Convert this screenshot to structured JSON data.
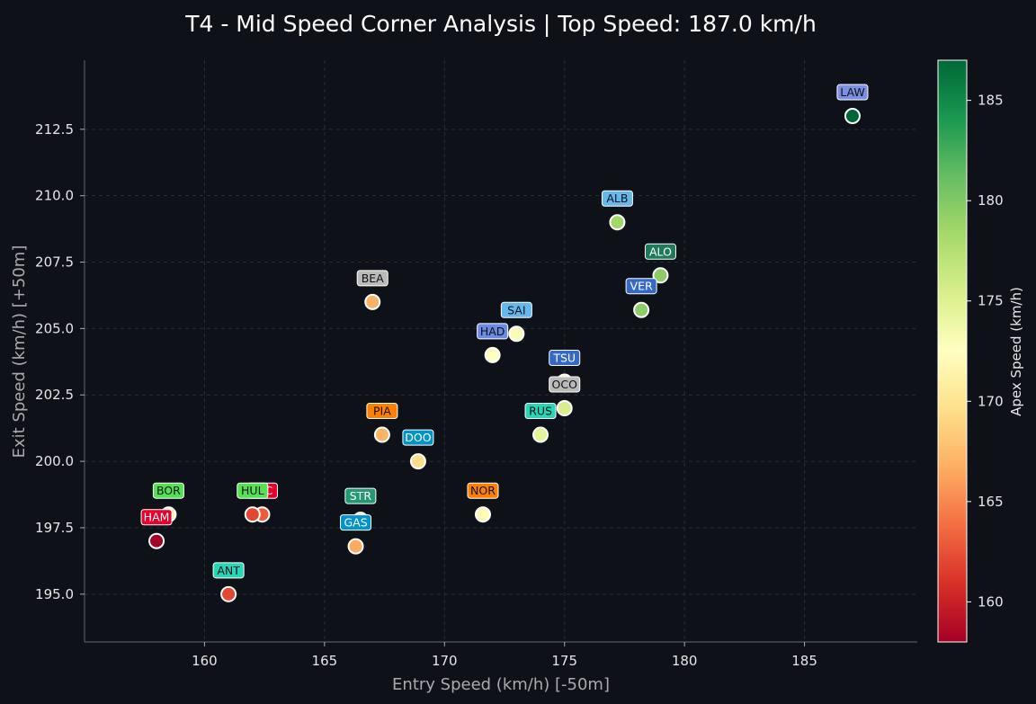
{
  "chart_data": {
    "type": "scatter",
    "title": "T4 - Mid Speed Corner Analysis | Top Speed: 187.0 km/h",
    "xlabel": "Entry Speed (km/h) [-50m]",
    "ylabel": "Exit Speed (km/h) [+50m]",
    "xlim": [
      155.0,
      189.7
    ],
    "ylim": [
      193.2,
      215.1
    ],
    "xticks": [
      "160",
      "165",
      "170",
      "175",
      "180",
      "185"
    ],
    "yticks": [
      "195.0",
      "197.5",
      "200.0",
      "202.5",
      "205.0",
      "207.5",
      "210.0",
      "212.5"
    ],
    "grid": true,
    "colorbar": {
      "label": "Apex Speed (km/h)",
      "range": [
        158,
        187
      ],
      "ticks": [
        "160",
        "165",
        "170",
        "175",
        "180",
        "185"
      ],
      "colormap": [
        "#a50026",
        "#d73027",
        "#f46d43",
        "#fdae61",
        "#fee08b",
        "#ffffbf",
        "#d9ef8b",
        "#a6d96a",
        "#66bd63",
        "#1a9850",
        "#006837"
      ]
    },
    "points": [
      {
        "driver": "LAW",
        "entry": 187.0,
        "exit": 213.0,
        "apex": 187.0,
        "tag": "#7b8fe6",
        "text": "#111111"
      },
      {
        "driver": "ALB",
        "entry": 177.2,
        "exit": 209.0,
        "apex": 178.5,
        "tag": "#64b8ee",
        "text": "#111111"
      },
      {
        "driver": "ALO",
        "entry": 179.0,
        "exit": 207.0,
        "apex": 179.5,
        "tag": "#1f7a5c",
        "text": "#ffffff"
      },
      {
        "driver": "VER",
        "entry": 178.2,
        "exit": 205.7,
        "apex": 179.5,
        "tag": "#3669c6",
        "text": "#ffffff"
      },
      {
        "driver": "BEA",
        "entry": 167.0,
        "exit": 206.0,
        "apex": 167.0,
        "tag": "#bababa",
        "text": "#111111"
      },
      {
        "driver": "SAI",
        "entry": 173.0,
        "exit": 204.8,
        "apex": 173.0,
        "tag": "#64b8ee",
        "text": "#111111"
      },
      {
        "driver": "HAD",
        "entry": 172.0,
        "exit": 204.0,
        "apex": 172.5,
        "tag": "#6a8ce6",
        "text": "#111111"
      },
      {
        "driver": "TSU",
        "entry": 175.0,
        "exit": 203.0,
        "apex": 174.5,
        "tag": "#3669c6",
        "text": "#ffffff"
      },
      {
        "driver": "OCO",
        "entry": 175.0,
        "exit": 202.0,
        "apex": 175.5,
        "tag": "#bababa",
        "text": "#111111"
      },
      {
        "driver": "RUS",
        "entry": 174.0,
        "exit": 201.0,
        "apex": 174.5,
        "tag": "#27d6b7",
        "text": "#111111"
      },
      {
        "driver": "PIA",
        "entry": 167.4,
        "exit": 201.0,
        "apex": 167.0,
        "tag": "#ff8000",
        "text": "#111111"
      },
      {
        "driver": "DOO",
        "entry": 168.9,
        "exit": 200.0,
        "apex": 169.5,
        "tag": "#0093cc",
        "text": "#ffffff"
      },
      {
        "driver": "NOR",
        "entry": 171.6,
        "exit": 198.0,
        "apex": 172.0,
        "tag": "#ff8000",
        "text": "#111111"
      },
      {
        "driver": "STR",
        "entry": 166.5,
        "exit": 197.8,
        "apex": 175.0,
        "tag": "#229971",
        "text": "#ffffff"
      },
      {
        "driver": "GAS",
        "entry": 166.3,
        "exit": 196.8,
        "apex": 166.5,
        "tag": "#0093cc",
        "text": "#ffffff"
      },
      {
        "driver": "LEC",
        "entry": 162.4,
        "exit": 198.0,
        "apex": 163.0,
        "tag": "#e8002d",
        "text": "#ffffff"
      },
      {
        "driver": "HUL",
        "entry": 162.0,
        "exit": 198.0,
        "apex": 162.0,
        "tag": "#52e252",
        "text": "#111111"
      },
      {
        "driver": "BOR",
        "entry": 158.5,
        "exit": 198.0,
        "apex": 171.0,
        "tag": "#52e252",
        "text": "#111111"
      },
      {
        "driver": "HAM",
        "entry": 158.0,
        "exit": 197.0,
        "apex": 158.0,
        "tag": "#e8002d",
        "text": "#ffffff"
      },
      {
        "driver": "ANT",
        "entry": 161.0,
        "exit": 195.0,
        "apex": 162.0,
        "tag": "#27d6b7",
        "text": "#111111"
      }
    ]
  }
}
